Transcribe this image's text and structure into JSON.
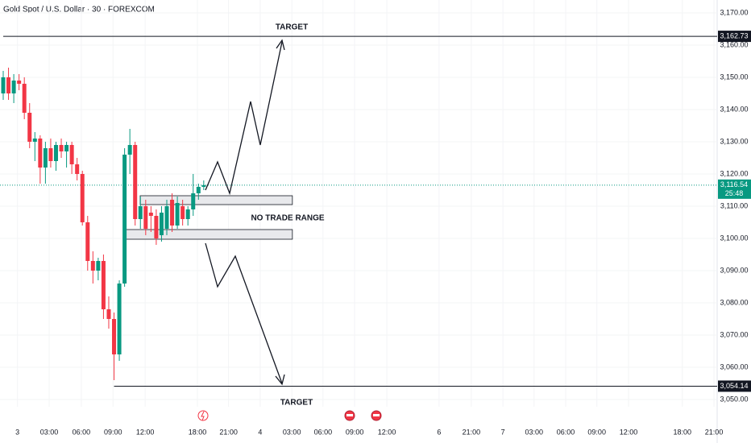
{
  "chart_data": {
    "type": "candlestick",
    "title": "Gold Spot / U.S. Dollar · 30 · FOREXCOM",
    "x": [
      0,
      1,
      2,
      3,
      4,
      5,
      6,
      7,
      8,
      9,
      10,
      11,
      12,
      13,
      14,
      15,
      16,
      17,
      18,
      19,
      20,
      21,
      22,
      23,
      24,
      25,
      26,
      27,
      28,
      29,
      30,
      31,
      32,
      33,
      34,
      35,
      36,
      37,
      38
    ],
    "open": [
      3145,
      3150,
      3145,
      3149,
      3148,
      3139,
      3130,
      3131,
      3122,
      3128,
      3124,
      3129,
      3127,
      3129,
      3123,
      3120,
      3105,
      3093,
      3090,
      3093,
      3078,
      3075,
      3064,
      3086,
      3126,
      3129,
      3106,
      3110,
      3108,
      3107,
      3101,
      3103,
      3112,
      3104,
      3110,
      3106,
      3109,
      3114,
      3116
    ],
    "high": [
      3152,
      3153,
      3151,
      3151,
      3150,
      3142,
      3133,
      3132,
      3130,
      3131,
      3130,
      3131,
      3130,
      3130,
      3125,
      3121,
      3107,
      3096,
      3094,
      3095,
      3082,
      3077,
      3087,
      3128,
      3134,
      3130,
      3113,
      3112,
      3110,
      3109,
      3110,
      3112,
      3114,
      3113,
      3112,
      3110,
      3120,
      3117,
      3118
    ],
    "low": [
      3143,
      3143,
      3142,
      3146,
      3137,
      3128,
      3124,
      3117,
      3117,
      3122,
      3121,
      3125,
      3122,
      3120,
      3118,
      3104,
      3090,
      3086,
      3087,
      3075,
      3072,
      3056,
      3062,
      3085,
      3120,
      3104,
      3103,
      3101,
      3102,
      3098,
      3099,
      3101,
      3102,
      3103,
      3104,
      3104,
      3107,
      3112,
      3115
    ],
    "close": [
      3150,
      3145,
      3149,
      3148,
      3139,
      3130,
      3131,
      3122,
      3128,
      3124,
      3129,
      3127,
      3129,
      3123,
      3120,
      3105,
      3093,
      3090,
      3093,
      3078,
      3075,
      3064,
      3086,
      3126,
      3129,
      3106,
      3110,
      3103,
      3107,
      3100,
      3108,
      3110,
      3104,
      3111,
      3106,
      3109,
      3114,
      3116,
      3116.54
    ],
    "up_color": "#089981",
    "down_color": "#f23645",
    "xlim": [
      0,
      135.3
    ],
    "xticks": [
      {
        "value": 2.7,
        "label": "3"
      },
      {
        "value": 8.7,
        "label": "03:00"
      },
      {
        "value": 14.8,
        "label": "06:00"
      },
      {
        "value": 20.8,
        "label": "09:00"
      },
      {
        "value": 26.9,
        "label": "12:00"
      },
      {
        "value": 36.8,
        "label": "18:00"
      },
      {
        "value": 42.7,
        "label": "21:00"
      },
      {
        "value": 48.7,
        "label": "4"
      },
      {
        "value": 54.7,
        "label": "03:00"
      },
      {
        "value": 60.6,
        "label": "06:00"
      },
      {
        "value": 66.6,
        "label": "09:00"
      },
      {
        "value": 72.7,
        "label": "12:00"
      },
      {
        "value": 82.6,
        "label": "6"
      },
      {
        "value": 88.7,
        "label": "21:00"
      },
      {
        "value": 94.7,
        "label": "7"
      },
      {
        "value": 100.6,
        "label": "03:00"
      },
      {
        "value": 106.6,
        "label": "06:00"
      },
      {
        "value": 112.5,
        "label": "09:00"
      },
      {
        "value": 118.5,
        "label": "12:00"
      },
      {
        "value": 128.7,
        "label": "18:00"
      },
      {
        "value": 134.7,
        "label": "21:00"
      }
    ],
    "ylim": [
      3050,
      3170
    ],
    "yticks": [
      {
        "value": 3050,
        "label": "3,050.00"
      },
      {
        "value": 3060,
        "label": "3,060.00"
      },
      {
        "value": 3070,
        "label": "3,070.00"
      },
      {
        "value": 3080,
        "label": "3,080.00"
      },
      {
        "value": 3090,
        "label": "3,090.00"
      },
      {
        "value": 3100,
        "label": "3,100.00"
      },
      {
        "value": 3110,
        "label": "3,110.00"
      },
      {
        "value": 3120,
        "label": "3,120.00"
      },
      {
        "value": 3130,
        "label": "3,130.00"
      },
      {
        "value": 3140,
        "label": "3,140.00"
      },
      {
        "value": 3150,
        "label": "3,150.00"
      },
      {
        "value": 3160,
        "label": "3,160.00"
      },
      {
        "value": 3170,
        "label": "3,170.00"
      }
    ],
    "levels": [
      {
        "value": 3162.73,
        "label": "3,162.73",
        "start": 0
      },
      {
        "value": 3054.14,
        "label": "3,054.14",
        "start": 21
      }
    ],
    "last_price": {
      "value": 3116.54,
      "label": "3,116.54",
      "countdown": "25:48"
    },
    "zones": [
      {
        "top": 3113.25,
        "bottom": 3110.5,
        "start": 25.95,
        "end": 54.8
      },
      {
        "top": 3102.75,
        "bottom": 3099.75,
        "start": 23.05,
        "end": 54.8
      }
    ],
    "annotations": [
      "TARGET",
      "NO TRADE RANGE",
      "TARGET"
    ]
  }
}
